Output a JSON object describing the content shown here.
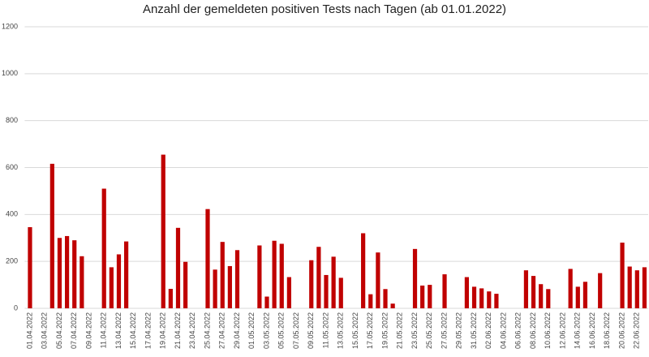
{
  "chart_data": {
    "type": "bar",
    "title": "Anzahl der gemeldeten positiven Tests nach Tagen (ab 01.01.2022)",
    "categories": [
      "01.04.2022",
      null,
      "03.04.2022",
      null,
      "05.04.2022",
      null,
      "07.04.2022",
      null,
      "09.04.2022",
      null,
      "11.04.2022",
      null,
      "13.04.2022",
      null,
      "15.04.2022",
      null,
      "17.04.2022",
      null,
      "19.04.2022",
      null,
      "21.04.2022",
      null,
      "23.04.2022",
      null,
      "25.04.2022",
      null,
      "27.04.2022",
      null,
      "29.04.2022",
      null,
      "01.05.2022",
      null,
      "03.05.2022",
      null,
      "05.05.2022",
      null,
      "07.05.2022",
      null,
      "09.05.2022",
      null,
      "11.05.2022",
      null,
      "13.05.2022",
      null,
      "15.05.2022",
      null,
      "17.05.2022",
      null,
      "19.05.2022",
      null,
      "21.05.2022",
      null,
      "23.05.2022",
      null,
      "25.05.2022",
      null,
      "27.05.2022",
      null,
      "29.05.2022",
      null,
      "31.05.2022",
      null,
      "02.06.2022",
      null,
      "04.06.2022",
      null,
      "06.06.2022",
      null,
      "08.06.2022",
      null,
      "10.06.2022",
      null,
      "12.06.2022",
      null,
      "14.06.2022",
      null,
      "16.06.2022",
      null,
      "18.06.2022",
      null,
      "20.06.2022",
      null,
      "22.06.2022",
      null
    ],
    "values": [
      346,
      0,
      0,
      616,
      300,
      308,
      290,
      222,
      0,
      0,
      510,
      175,
      230,
      285,
      0,
      0,
      0,
      0,
      655,
      83,
      343,
      198,
      0,
      0,
      423,
      165,
      283,
      180,
      248,
      0,
      0,
      268,
      50,
      288,
      275,
      133,
      0,
      0,
      205,
      262,
      142,
      220,
      130,
      0,
      0,
      320,
      60,
      238,
      82,
      20,
      0,
      0,
      253,
      97,
      100,
      0,
      145,
      0,
      0,
      133,
      92,
      85,
      72,
      62,
      0,
      0,
      0,
      162,
      138,
      103,
      82,
      0,
      0,
      168,
      92,
      113,
      0,
      150,
      0,
      0,
      280,
      178,
      162,
      175
    ],
    "color": "#c00000",
    "ylim": [
      0,
      1200
    ],
    "yticks": [
      0,
      200,
      400,
      600,
      800,
      1000,
      1200
    ],
    "grid": true
  }
}
